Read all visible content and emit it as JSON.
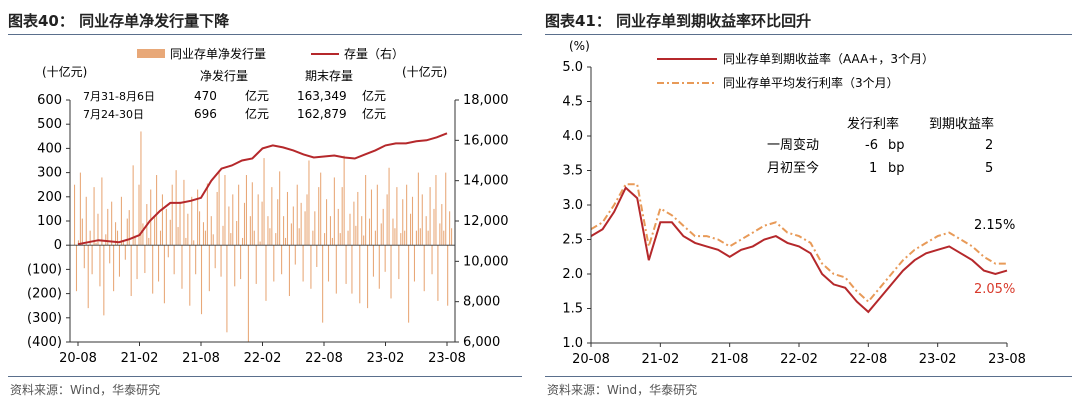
{
  "left": {
    "title": "图表40：  同业存单净发行量下降",
    "source": "资料来源：Wind，华泰研究",
    "unit_left": "(十亿元)",
    "unit_right": "(十亿元)",
    "table": {
      "col1": "净发行量",
      "col2": "期末存量",
      "rows": [
        {
          "label": "7月31-8月6日",
          "net": "470",
          "unit1": "亿元",
          "stock": "163,349",
          "unit2": "亿元"
        },
        {
          "label": "7月24-30日",
          "net": "696",
          "unit1": "亿元",
          "stock": "162,879",
          "unit2": "亿元"
        }
      ]
    }
  },
  "right": {
    "title": "图表41：  同业存单到期收益率环比回升",
    "source": "资料来源：Wind，华泰研究",
    "unit": "(%)",
    "table": {
      "col1": "发行利率",
      "col2": "到期收益率",
      "rows": [
        {
          "label": "一周变动",
          "a": "-6",
          "unit": "bp",
          "b": "2"
        },
        {
          "label": "月初至今",
          "a": "1",
          "unit": "bp",
          "b": "5"
        }
      ]
    },
    "annotations": {
      "a1": "2.15%",
      "a2": "2.05%"
    }
  },
  "colors": {
    "bars": "#e8a878",
    "stock_line": "#b5282b",
    "ytm_line": "#b5282b",
    "issue_line": "#e89a58",
    "annotation_red": "#d83a2c"
  },
  "chart_data": [
    {
      "type": "bar",
      "title": "同业存单净发行量下降",
      "x_ticks": [
        "20-08",
        "21-02",
        "21-08",
        "22-02",
        "22-08",
        "23-02",
        "23-08"
      ],
      "ylim_left": [
        -400,
        600
      ],
      "yticks_left": [
        "600",
        "500",
        "400",
        "300",
        "200",
        "100",
        "0",
        "(100)",
        "(200)",
        "(300)",
        "(400)"
      ],
      "ylim_right": [
        6000,
        18000
      ],
      "yticks_right": [
        "18,000",
        "16,000",
        "14,000",
        "12,000",
        "10,000",
        "8,000",
        "6,000"
      ],
      "series": [
        {
          "name": "同业存单净发行量",
          "axis": "left",
          "kind": "bar",
          "values": [
            250,
            -190,
            20,
            300,
            110,
            -95,
            200,
            -260,
            60,
            -120,
            240,
            10,
            130,
            -170,
            280,
            -290,
            45,
            150,
            -75,
            180,
            -190,
            95,
            60,
            -130,
            200,
            15,
            -60,
            110,
            145,
            -210,
            330,
            40,
            -140,
            250,
            470,
            90,
            -115,
            170,
            30,
            230,
            -200,
            120,
            290,
            -150,
            60,
            210,
            -240,
            150,
            -50,
            105,
            250,
            -120,
            310,
            75,
            180,
            -180,
            270,
            30,
            130,
            -250,
            200,
            20,
            -120,
            230,
            140,
            -285,
            95,
            60,
            255,
            -190,
            120,
            45,
            -95,
            220,
            310,
            -130,
            80,
            290,
            -360,
            160,
            50,
            210,
            -170,
            100,
            250,
            -140,
            30,
            175,
            290,
            -400,
            120,
            260,
            60,
            -160,
            210,
            15,
            180,
            360,
            -230,
            120,
            70,
            240,
            -150,
            50,
            190,
            305,
            -120,
            120,
            30,
            220,
            -210,
            90,
            160,
            -80,
            250,
            70,
            175,
            -150,
            140,
            210,
            350,
            -180,
            60,
            140,
            -90,
            240,
            300,
            -320,
            50,
            190,
            -150,
            120,
            30,
            280,
            -200,
            150,
            50,
            240,
            370,
            -160,
            60,
            130,
            -200,
            180,
            80,
            220,
            -240,
            120,
            40,
            290,
            -260,
            110,
            230,
            -130,
            60,
            250,
            -180,
            90,
            150,
            -110,
            210,
            320,
            -220,
            110,
            70,
            240,
            -140,
            50,
            190,
            60,
            250,
            -320,
            130,
            200,
            -150,
            60,
            300,
            70,
            210,
            -190,
            120,
            60,
            240,
            -120,
            150,
            290,
            -230,
            90,
            170,
            60,
            300,
            -250,
            140,
            70
          ]
        },
        {
          "name": "存量（右）",
          "axis": "right",
          "kind": "line",
          "x": [
            "20-08",
            "20-10",
            "20-12",
            "21-01",
            "21-02",
            "21-03",
            "21-04",
            "21-05",
            "21-06",
            "21-07",
            "21-08",
            "21-09",
            "21-10",
            "21-11",
            "21-12",
            "22-01",
            "22-02",
            "22-03",
            "22-04",
            "22-05",
            "22-06",
            "22-07",
            "22-08",
            "22-09",
            "22-10",
            "22-11",
            "22-12",
            "23-01",
            "23-02",
            "23-03",
            "23-04",
            "23-05",
            "23-06",
            "23-07",
            "23-08"
          ],
          "values": [
            10850,
            11050,
            10950,
            11100,
            11300,
            12000,
            12500,
            12900,
            12900,
            13000,
            13150,
            14000,
            14600,
            14750,
            15000,
            15100,
            15600,
            15750,
            15650,
            15500,
            15300,
            15150,
            15200,
            15250,
            15150,
            15100,
            15300,
            15500,
            15750,
            15850,
            15850,
            15950,
            16000,
            16150,
            16350
          ]
        }
      ]
    },
    {
      "type": "line",
      "title": "同业存单到期收益率环比回升",
      "ylabel": "(%)",
      "x_ticks": [
        "20-08",
        "21-02",
        "21-08",
        "22-02",
        "22-08",
        "23-02",
        "23-08"
      ],
      "ylim": [
        1.0,
        5.0
      ],
      "yticks": [
        "5.0",
        "4.5",
        "4.0",
        "3.5",
        "3.0",
        "2.5",
        "2.0",
        "1.5",
        "1.0"
      ],
      "series": [
        {
          "name": "同业存单到期收益率（AAA+，3个月）",
          "x": [
            "20-08",
            "20-09",
            "20-10",
            "20-11",
            "20-12",
            "21-01",
            "21-02",
            "21-03",
            "21-04",
            "21-05",
            "21-06",
            "21-07",
            "21-08",
            "21-09",
            "21-10",
            "21-11",
            "21-12",
            "22-01",
            "22-02",
            "22-03",
            "22-04",
            "22-05",
            "22-06",
            "22-07",
            "22-08",
            "22-09",
            "22-10",
            "22-11",
            "22-12",
            "23-01",
            "23-02",
            "23-03",
            "23-04",
            "23-05",
            "23-06",
            "23-07",
            "23-08"
          ],
          "values": [
            2.55,
            2.65,
            2.9,
            3.25,
            3.1,
            2.2,
            2.75,
            2.75,
            2.55,
            2.45,
            2.4,
            2.35,
            2.25,
            2.35,
            2.4,
            2.5,
            2.55,
            2.45,
            2.4,
            2.3,
            2.0,
            1.85,
            1.8,
            1.6,
            1.45,
            1.65,
            1.85,
            2.05,
            2.2,
            2.3,
            2.35,
            2.4,
            2.3,
            2.2,
            2.05,
            2.0,
            2.05
          ]
        },
        {
          "name": "同业存单平均发行利率（3个月）",
          "x": [
            "20-08",
            "20-09",
            "20-10",
            "20-11",
            "20-12",
            "21-01",
            "21-02",
            "21-03",
            "21-04",
            "21-05",
            "21-06",
            "21-07",
            "21-08",
            "21-09",
            "21-10",
            "21-11",
            "21-12",
            "22-01",
            "22-02",
            "22-03",
            "22-04",
            "22-05",
            "22-06",
            "22-07",
            "22-08",
            "22-09",
            "22-10",
            "22-11",
            "22-12",
            "23-01",
            "23-02",
            "23-03",
            "23-04",
            "23-05",
            "23-06",
            "23-07",
            "23-08"
          ],
          "values": [
            2.65,
            2.75,
            3.0,
            3.3,
            3.3,
            2.4,
            2.95,
            2.85,
            2.7,
            2.55,
            2.55,
            2.5,
            2.4,
            2.5,
            2.6,
            2.7,
            2.75,
            2.6,
            2.55,
            2.45,
            2.15,
            2.0,
            1.95,
            1.75,
            1.6,
            1.8,
            2.0,
            2.2,
            2.35,
            2.45,
            2.55,
            2.6,
            2.5,
            2.4,
            2.25,
            2.15,
            2.15
          ]
        }
      ]
    }
  ]
}
